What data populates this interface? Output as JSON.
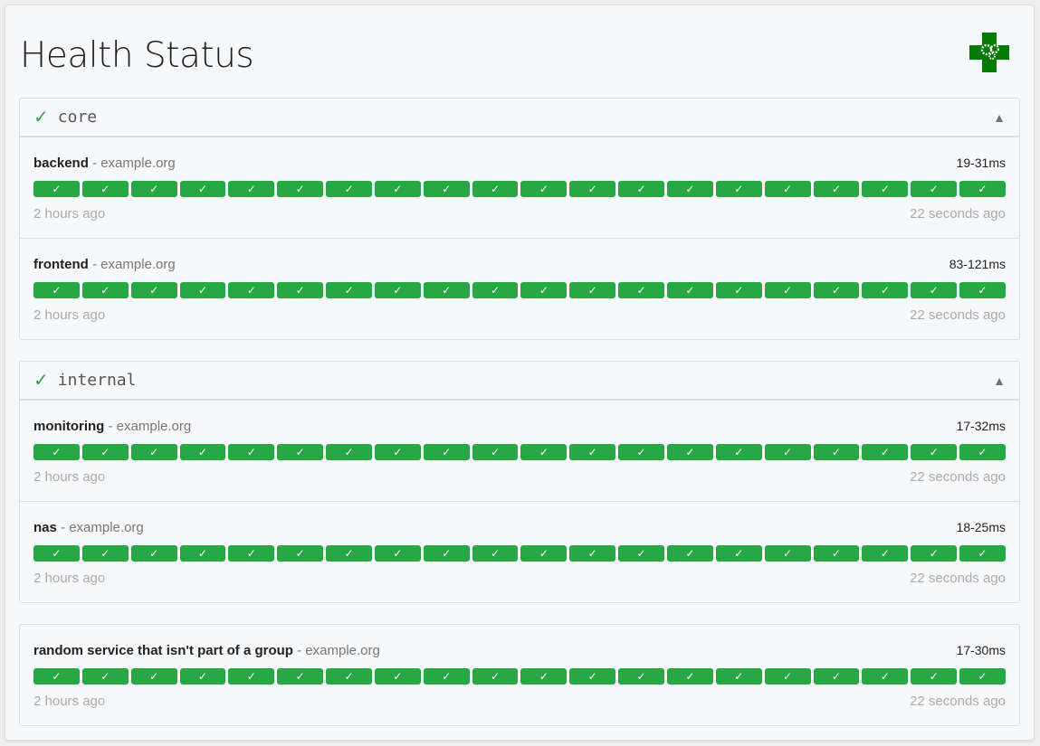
{
  "title": "Health Status",
  "logo": "green-cross-gears-logo",
  "colors": {
    "success": "#28a745",
    "logo": "#007a00"
  },
  "groups": [
    {
      "name": "core",
      "status_icon": "✓",
      "toggle": "▲",
      "services": [
        {
          "name": "backend",
          "host": "example.org",
          "range": "19-31ms",
          "oldest": "2 hours ago",
          "newest": "22 seconds ago"
        },
        {
          "name": "frontend",
          "host": "example.org",
          "range": "83-121ms",
          "oldest": "2 hours ago",
          "newest": "22 seconds ago"
        }
      ]
    },
    {
      "name": "internal",
      "status_icon": "✓",
      "toggle": "▲",
      "services": [
        {
          "name": "monitoring",
          "host": "example.org",
          "range": "17-32ms",
          "oldest": "2 hours ago",
          "newest": "22 seconds ago"
        },
        {
          "name": "nas",
          "host": "example.org",
          "range": "18-25ms",
          "oldest": "2 hours ago",
          "newest": "22 seconds ago"
        }
      ]
    },
    {
      "name": "",
      "services": [
        {
          "name": "random service that isn't part of a group",
          "host": "example.org",
          "range": "17-30ms",
          "oldest": "2 hours ago",
          "newest": "22 seconds ago"
        }
      ]
    }
  ],
  "results_per_service": 20,
  "result_glyph": "✓",
  "separator": " - "
}
